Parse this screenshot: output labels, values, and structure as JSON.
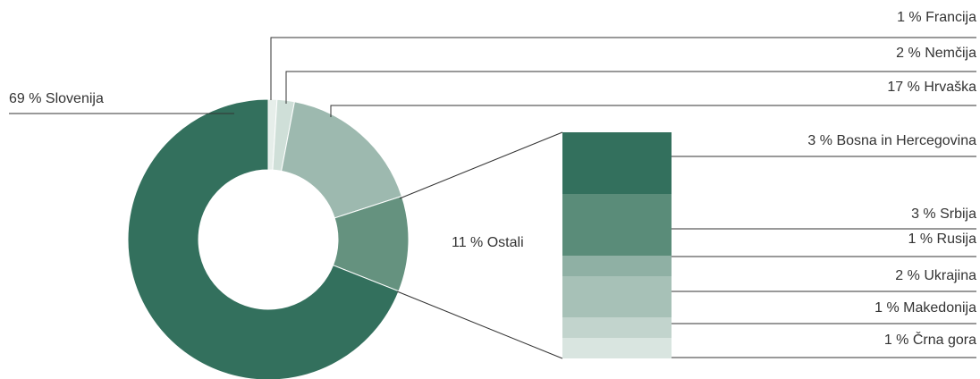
{
  "chart_data": {
    "type": "bar-of-pie",
    "categories": [
      "Francija",
      "Nemčija",
      "Hrvaška",
      "Ostali",
      "Slovenija"
    ],
    "values": [
      1,
      2,
      17,
      11,
      69
    ],
    "value_labels": [
      "1 %",
      "2 %",
      "17 %",
      "11 %",
      "69 %"
    ],
    "colors": [
      "#e6eeea",
      "#cfdfd8",
      "#9db9af",
      "#65927f",
      "#33705d"
    ],
    "breakdown": {
      "categories": [
        "Bosna in Hercegovina",
        "Srbija",
        "Rusija",
        "Ukrajina",
        "Makedonija",
        "Črna gora"
      ],
      "values": [
        3,
        3,
        1,
        2,
        1,
        1
      ],
      "value_labels": [
        "3 %",
        "3 %",
        "1 %",
        "2 %",
        "1 %",
        "1 %"
      ],
      "colors": [
        "#33705d",
        "#5a8c79",
        "#8fb0a4",
        "#a7c1b7",
        "#c2d4cd",
        "#d9e5e0"
      ]
    }
  }
}
